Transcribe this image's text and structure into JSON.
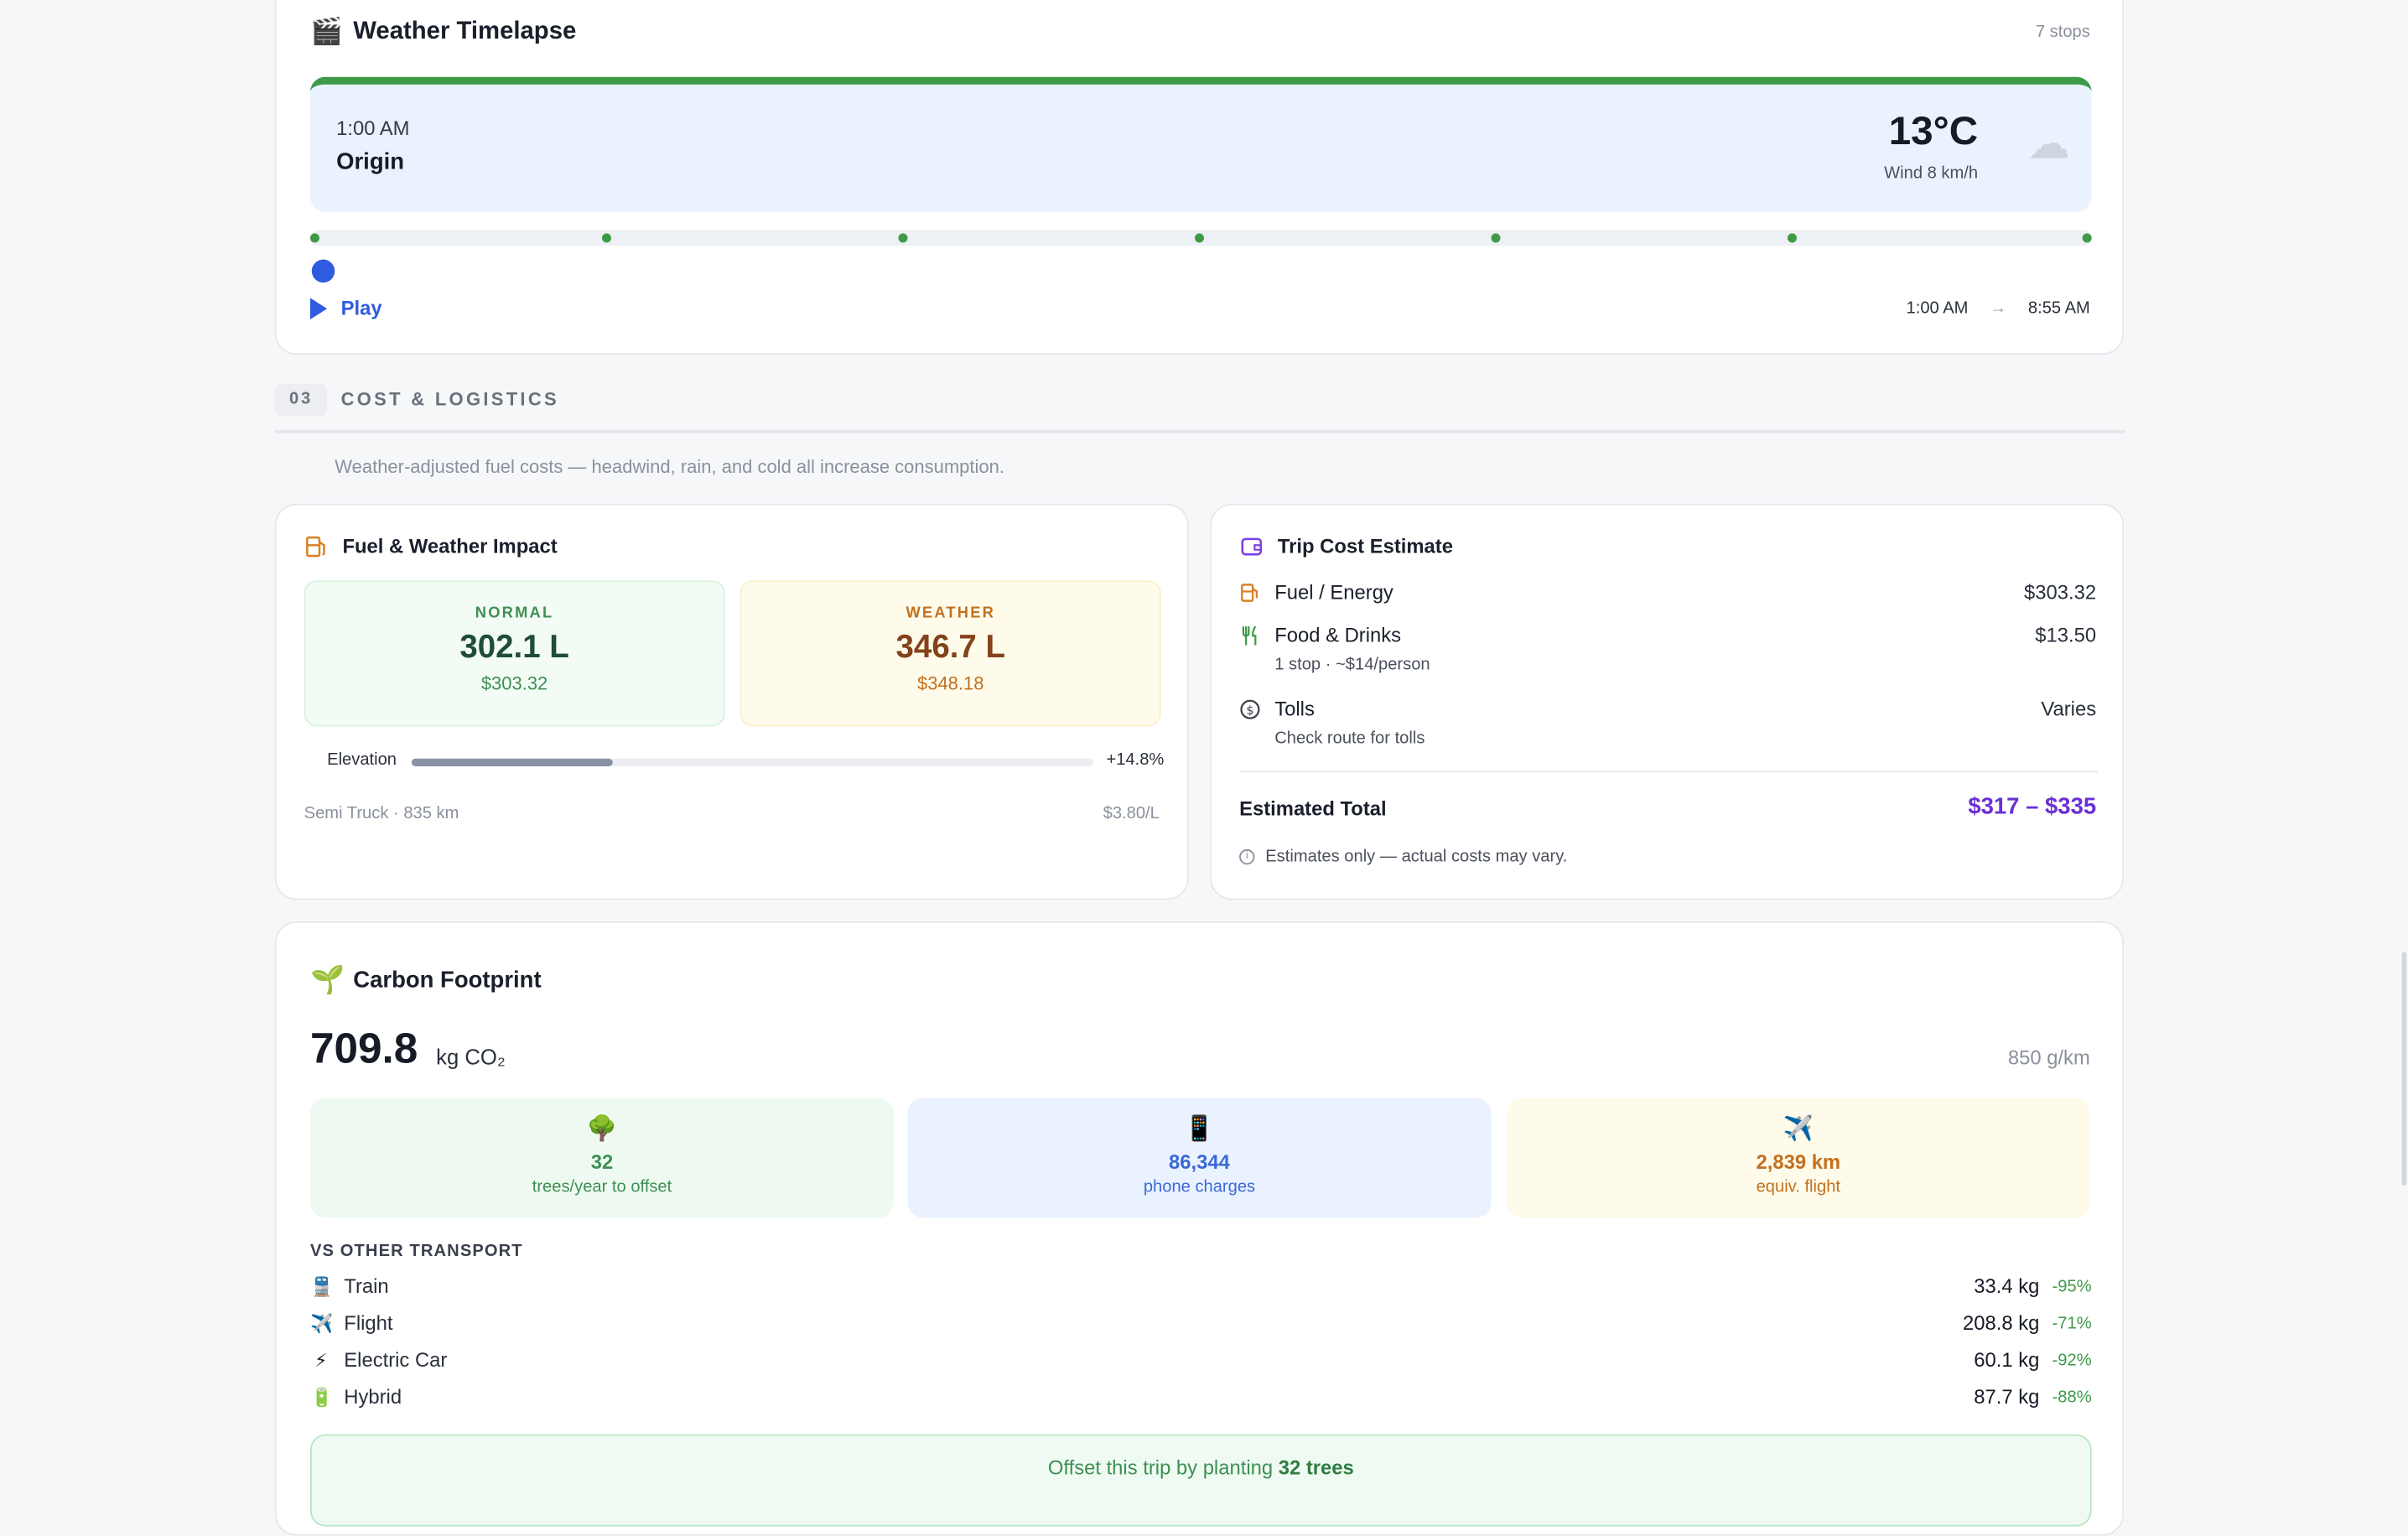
{
  "timelapse": {
    "title": "Weather Timelapse",
    "stops_label": "7 stops",
    "current_time": "1:00 AM",
    "current_place": "Origin",
    "temperature": "13°C",
    "wind": "Wind 8 km/h",
    "condition_icon": "cloud-icon",
    "play_label": "Play",
    "start_time": "1:00 AM",
    "end_time": "8:55 AM",
    "accent_color": "#3e9a47",
    "progress": 0
  },
  "section": {
    "number": "03",
    "title": "COST & LOGISTICS",
    "description": "Weather-adjusted fuel costs — headwind, rain, and cold all increase consumption."
  },
  "fuel": {
    "title": "Fuel & Weather Impact",
    "normal_label": "NORMAL",
    "normal_volume": "302.1 L",
    "normal_cost": "$303.32",
    "weather_label": "WEATHER",
    "weather_volume": "346.7 L",
    "weather_cost": "$348.18",
    "elevation_label": "Elevation",
    "elevation_pct": "+14.8%",
    "elevation_fill": 0.296,
    "vehicle": "Semi Truck · 835 km",
    "price": "$3.80/L"
  },
  "trip": {
    "title": "Trip Cost Estimate",
    "items": [
      {
        "name": "Fuel / Energy",
        "sub": "",
        "value": "$303.32",
        "icon": "fuel-pump-icon"
      },
      {
        "name": "Food & Drinks",
        "sub": "1 stop · ~$14/person",
        "value": "$13.50",
        "icon": "utensils-icon"
      },
      {
        "name": "Tolls",
        "sub": "Check route for tolls",
        "value": "Varies",
        "icon": "dollar-circle-icon"
      }
    ],
    "estimated_label": "Estimated Total",
    "estimated_value": "$317 – $335",
    "note": "Estimates only — actual costs may vary.",
    "accent_color": "#6a2fd6"
  },
  "carbon": {
    "title": "Carbon Footprint",
    "total": "709.8",
    "unit": "kg CO₂",
    "rate": "850 g/km",
    "equivalents": [
      {
        "icon": "🌳",
        "value": "32",
        "label": "trees/year to offset"
      },
      {
        "icon": "📱",
        "value": "86,344",
        "label": "phone charges"
      },
      {
        "icon": "✈️",
        "value": "2,839 km",
        "label": "equiv. flight"
      }
    ],
    "vs_heading": "VS OTHER TRANSPORT",
    "vs": [
      {
        "icon": "🚆",
        "name": "Train",
        "kg": "33.4 kg",
        "pct": "-95%"
      },
      {
        "icon": "✈️",
        "name": "Flight",
        "kg": "208.8 kg",
        "pct": "-71%"
      },
      {
        "icon": "⚡",
        "name": "Electric Car",
        "kg": "60.1 kg",
        "pct": "-92%"
      },
      {
        "icon": "🔋",
        "name": "Hybrid",
        "kg": "87.7 kg",
        "pct": "-88%"
      }
    ],
    "offset_prefix": "Offset this trip by planting ",
    "offset_bold": "32 trees"
  }
}
